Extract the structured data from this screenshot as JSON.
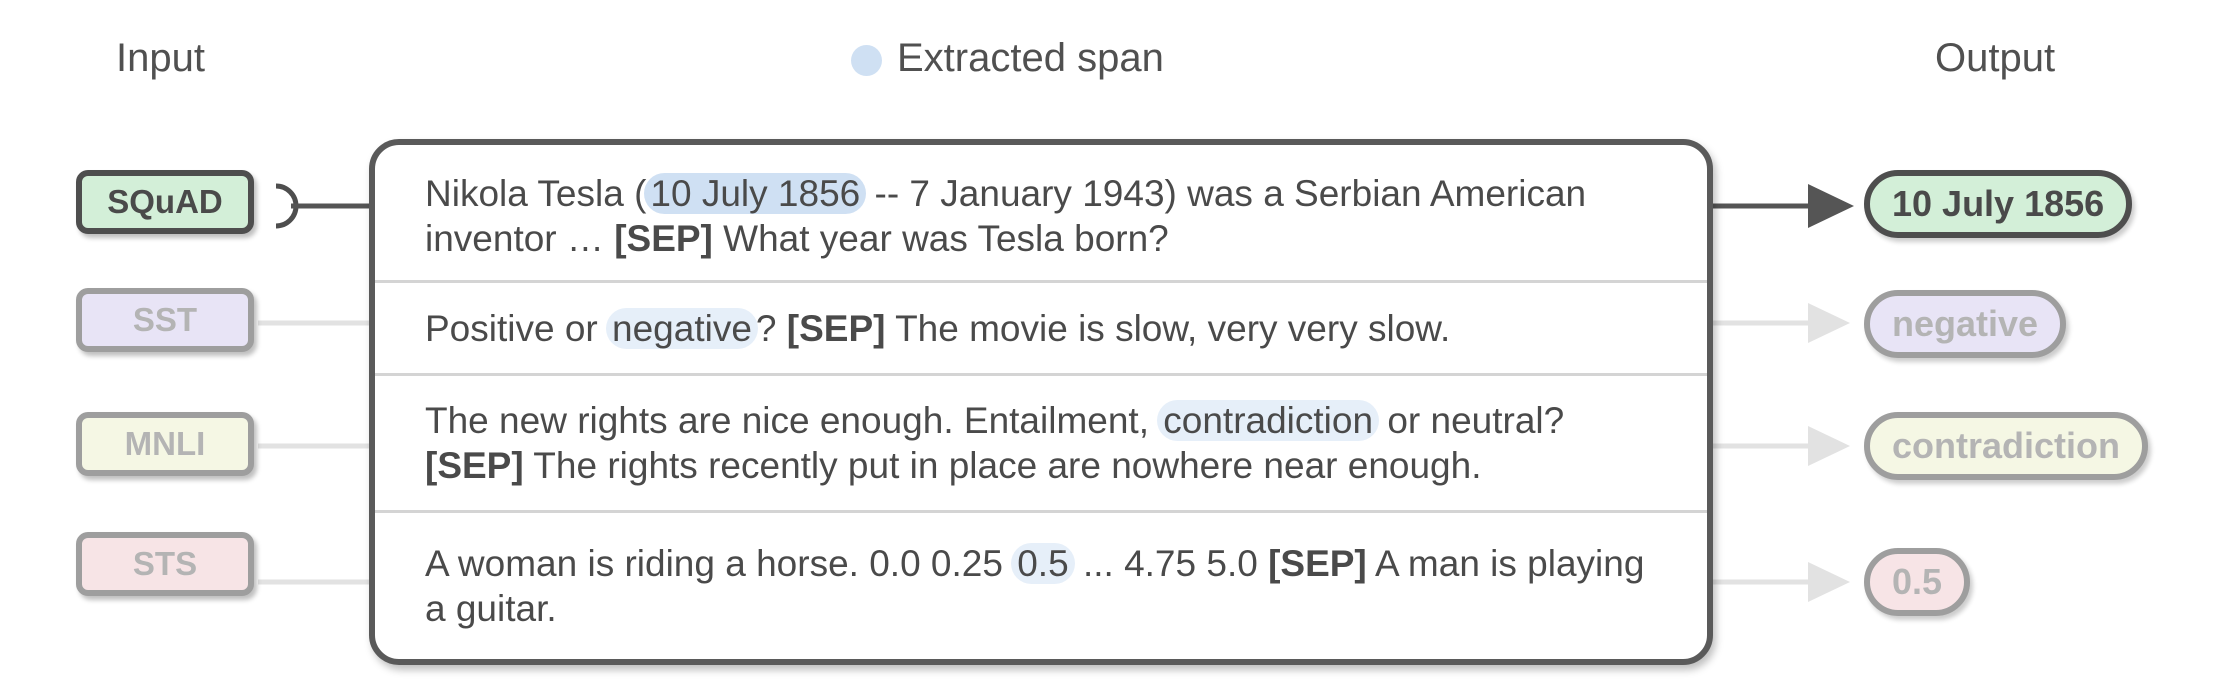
{
  "headers": {
    "input": "Input",
    "legend": "Extracted span",
    "output": "Output"
  },
  "colors": {
    "squad": "#d3efd8",
    "sst": "#e8e4f6",
    "mnli": "#f5f7e4",
    "sts": "#f7e4e6",
    "span": "#cfe0f3"
  },
  "tasks": [
    {
      "name": "SQuAD",
      "output": "10 July 1856"
    },
    {
      "name": "SST",
      "output": "negative"
    },
    {
      "name": "MNLI",
      "output": "contradiction"
    },
    {
      "name": "STS",
      "output": "0.5"
    }
  ],
  "rows": [
    {
      "pre": "Nikola Tesla (",
      "span": "10 July 1856",
      "post": " -- 7 January 1943) was a Serbian American inventor … ",
      "sep": "[SEP]",
      "tail": " What year was Tesla born?"
    },
    {
      "pre": "Positive or ",
      "span": "negative",
      "post": "? ",
      "sep": "[SEP]",
      "tail": " The movie is slow, very very slow."
    },
    {
      "pre": "The new rights are nice enough. Entailment, ",
      "span": "contradiction",
      "post": " or neutral? ",
      "sep": "[SEP]",
      "tail": " The rights recently put in place are nowhere near enough."
    },
    {
      "pre": "A woman is riding a horse. 0.0 0.25 ",
      "span": "0.5",
      "post": " ... 4.75 5.0 ",
      "sep": "[SEP]",
      "tail": " A man is playing a guitar."
    }
  ]
}
